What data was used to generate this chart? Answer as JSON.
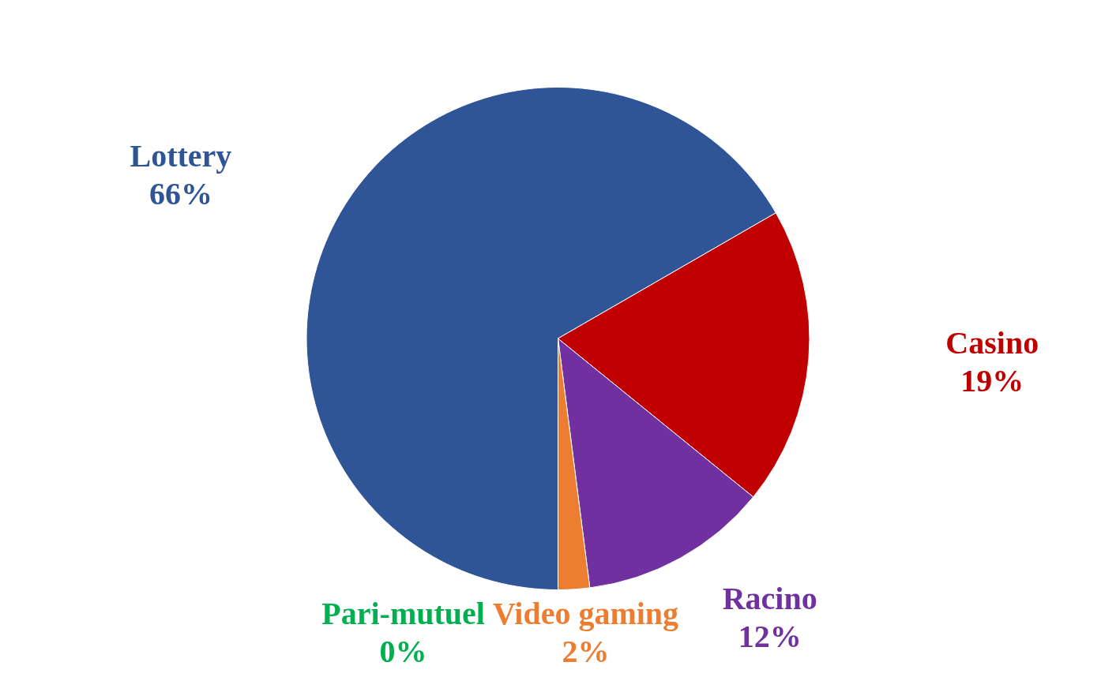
{
  "chart_data": {
    "type": "pie",
    "categories": [
      "Lottery",
      "Casino",
      "Racino",
      "Video gaming",
      "Pari-mutuel"
    ],
    "values": [
      66,
      19,
      12,
      2,
      0
    ],
    "colors": [
      "#2f5597",
      "#c00000",
      "#7030a0",
      "#ed7d31",
      "#00b050"
    ],
    "value_labels": [
      "66%",
      "19%",
      "12%",
      "2%",
      "0%"
    ],
    "legend": false
  }
}
